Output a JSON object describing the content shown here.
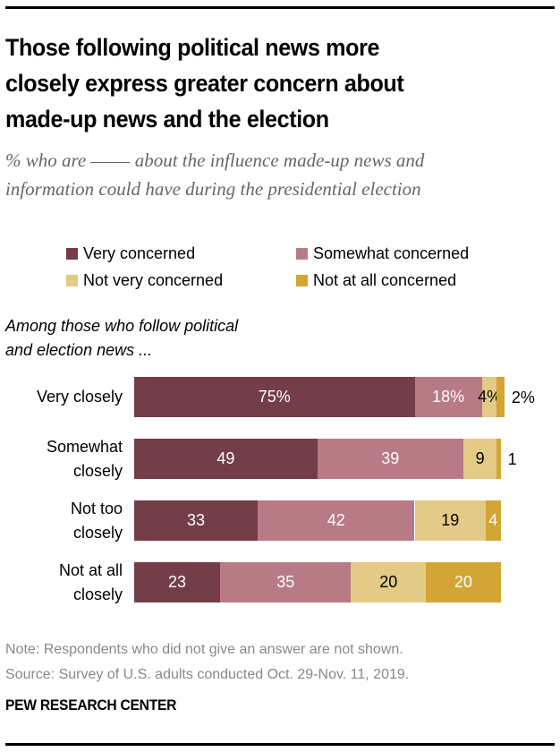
{
  "title": [
    "Those following political news more",
    "closely express greater concern about",
    "made-up news and the election"
  ],
  "subtitle": {
    "line1_before": "% who are ",
    "line1_after": " about the influence made-up news and",
    "line2": "information could have during the presidential election"
  },
  "chart_data": {
    "type": "bar",
    "orientation": "horizontal",
    "stacked": true,
    "title": "Those following political news more closely express greater concern about made-up news and the election",
    "subtitle": "% who are ___ about the influence made-up news and information could have during the presidential election",
    "group_label": "Among those who follow political and election news ...",
    "categories": [
      "Very closely",
      "Somewhat closely",
      "Not too closely",
      "Not at all closely"
    ],
    "category_lines": [
      [
        "Very closely"
      ],
      [
        "Somewhat",
        "closely"
      ],
      [
        "Not too",
        "closely"
      ],
      [
        "Not at all",
        "closely"
      ]
    ],
    "series": [
      {
        "name": "Very concerned",
        "color": "#733D49",
        "label_color": "#ffffff",
        "values": [
          75,
          49,
          33,
          23
        ]
      },
      {
        "name": "Somewhat concerned",
        "color": "#B87B86",
        "label_color": "#ffffff",
        "values": [
          18,
          39,
          42,
          35
        ]
      },
      {
        "name": "Not very concerned",
        "color": "#E3CA86",
        "label_color": "#000000",
        "values": [
          4,
          9,
          19,
          20
        ]
      },
      {
        "name": "Not at all concerned",
        "color": "#D3A535",
        "label_color": "#ffffff",
        "values": [
          2,
          1,
          4,
          20
        ]
      }
    ],
    "data_labels": [
      [
        "75%",
        "18%",
        "4%",
        "2%"
      ],
      [
        "49",
        "39",
        "9",
        "1"
      ],
      [
        "33",
        "42",
        "19",
        "4"
      ],
      [
        "23",
        "35",
        "20",
        "20"
      ]
    ],
    "xlim": [
      0,
      100
    ],
    "legend_position": "top",
    "grid": false
  },
  "note": "Note: Respondents who did not give an answer are not shown.",
  "source": "Source: Survey of U.S. adults conducted Oct. 29-Nov. 11, 2019.",
  "brand": "PEW RESEARCH CENTER"
}
